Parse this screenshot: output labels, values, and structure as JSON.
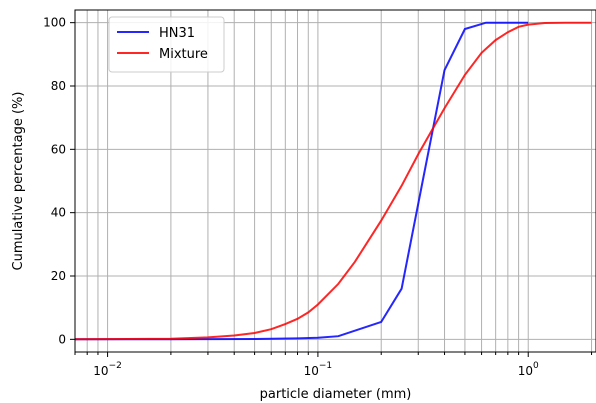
{
  "chart_data": {
    "type": "line",
    "title": "",
    "xlabel": "particle diameter (mm)",
    "ylabel": "Cumulative percentage (%)",
    "x_scale": "log",
    "xlim": [
      0.007,
      2.1
    ],
    "ylim": [
      -4,
      104
    ],
    "grid": true,
    "legend_position": "upper-left",
    "x_major_ticks": [
      {
        "value": 0.01,
        "base": "10",
        "exp": "−2"
      },
      {
        "value": 0.1,
        "base": "10",
        "exp": "−1"
      },
      {
        "value": 1,
        "base": "10",
        "exp": "0"
      }
    ],
    "y_ticks": [
      0,
      20,
      40,
      60,
      80,
      100
    ],
    "series": [
      {
        "name": "HN31",
        "color": "#0000ff",
        "x": [
          0.007,
          0.02,
          0.05,
          0.08,
          0.1,
          0.125,
          0.2,
          0.25,
          0.315,
          0.4,
          0.5,
          0.63,
          0.8,
          1.0
        ],
        "y": [
          0,
          0,
          0.1,
          0.3,
          0.5,
          1,
          5.5,
          16,
          50,
          85,
          98,
          100,
          100,
          100
        ]
      },
      {
        "name": "Mixture",
        "color": "#ff0000",
        "x": [
          0.007,
          0.02,
          0.03,
          0.04,
          0.05,
          0.06,
          0.07,
          0.08,
          0.09,
          0.1,
          0.125,
          0.15,
          0.2,
          0.25,
          0.3,
          0.4,
          0.5,
          0.6,
          0.7,
          0.8,
          0.9,
          1.0,
          1.2,
          1.5,
          2.0
        ],
        "y": [
          0,
          0.2,
          0.6,
          1.2,
          2,
          3.2,
          4.8,
          6.5,
          8.5,
          11,
          17.5,
          24.5,
          37.5,
          48.5,
          58.5,
          73,
          83.5,
          90.5,
          94.5,
          97,
          98.7,
          99.4,
          99.9,
          100,
          100
        ]
      }
    ]
  }
}
